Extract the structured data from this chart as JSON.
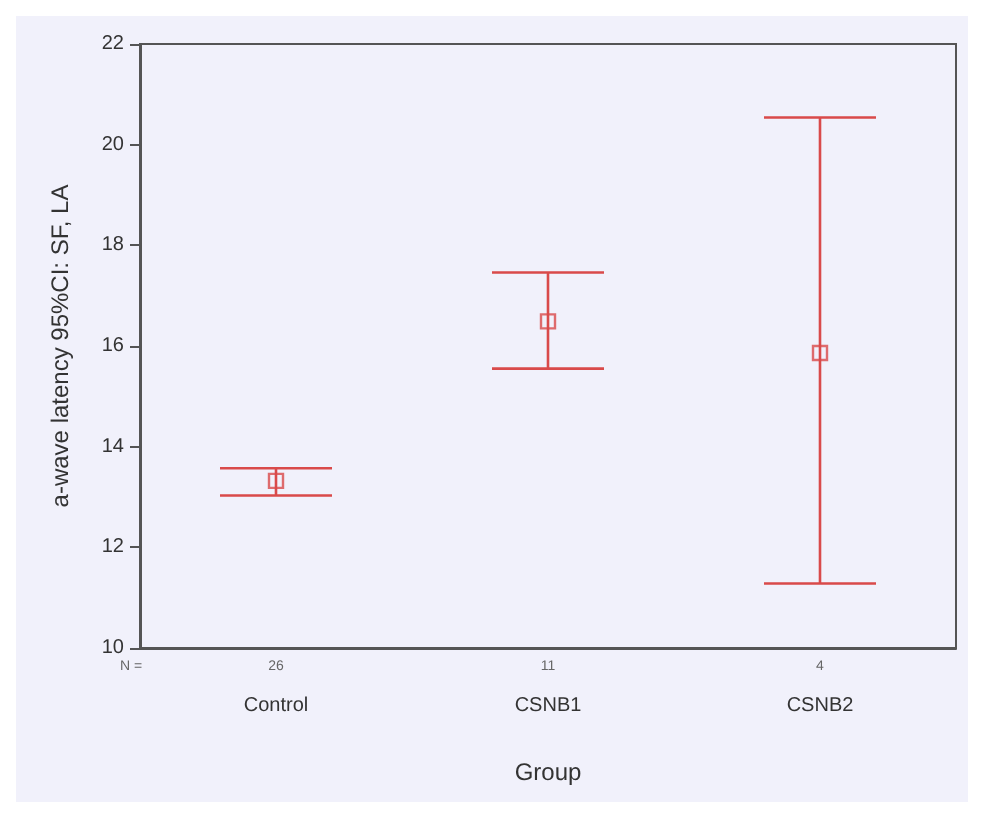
{
  "chart_data": {
    "type": "scatter",
    "xlabel": "Group",
    "ylabel": "a-wave latency 95%CI: SF, LA",
    "categories": [
      "Control",
      "CSNB1",
      "CSNB2"
    ],
    "values": [
      13.32,
      16.49,
      15.86
    ],
    "errors": [
      [
        13.03,
        13.57
      ],
      [
        15.55,
        17.46
      ],
      [
        11.28,
        20.54
      ]
    ],
    "color": "#d94a4a",
    "marker": "square",
    "grid": false,
    "ylim": [
      10,
      22
    ],
    "yticks": [
      10,
      12,
      14,
      16,
      18,
      20,
      22
    ],
    "annotations": [
      "N =",
      "26",
      "11",
      "4"
    ]
  }
}
